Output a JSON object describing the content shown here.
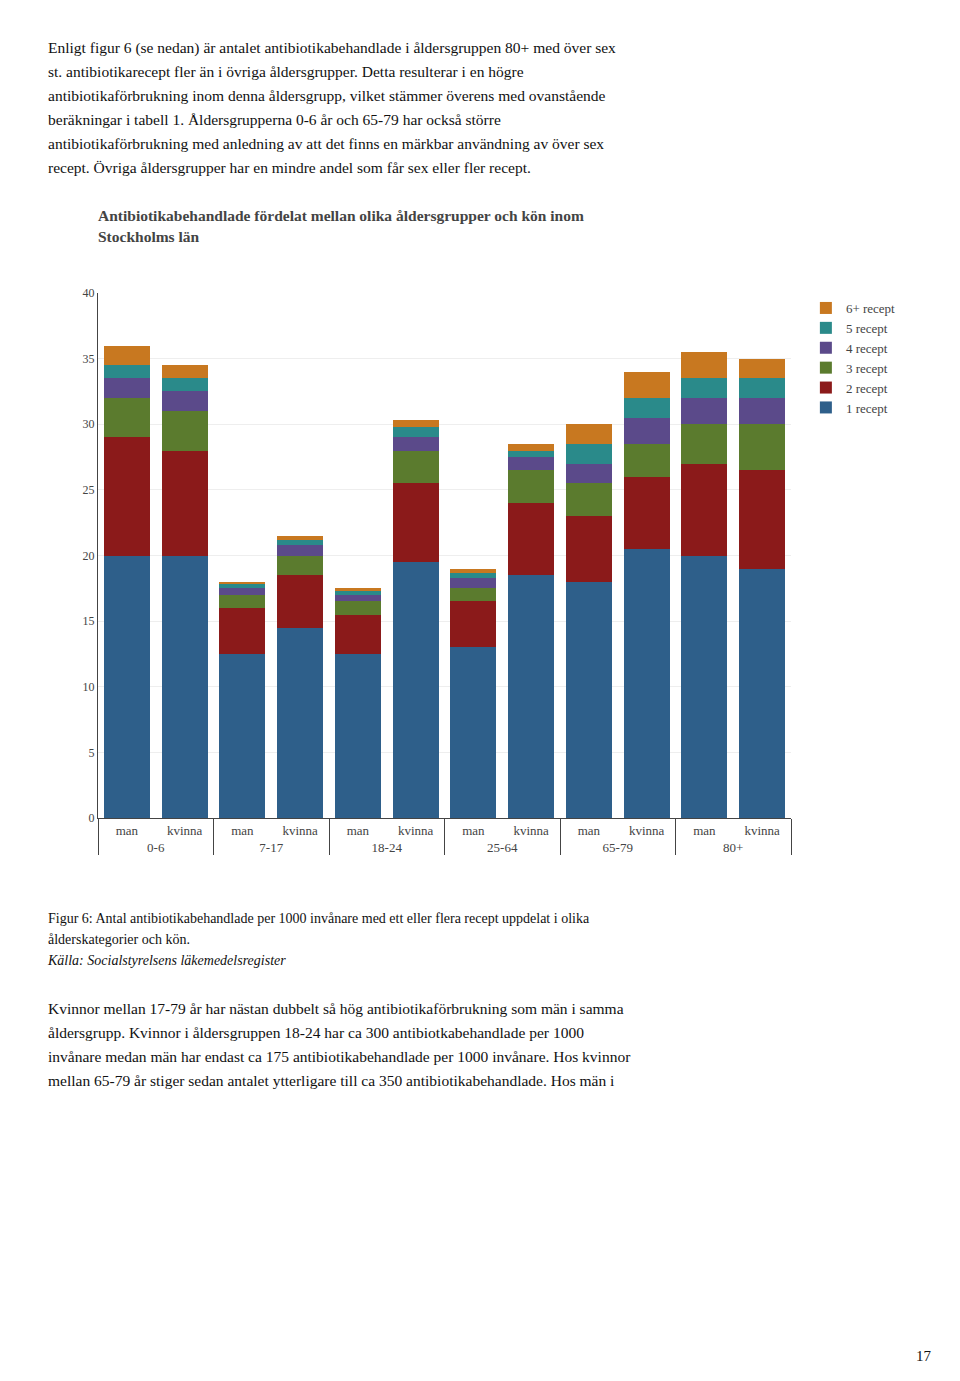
{
  "page_text": {
    "before": [
      "Enligt figur 6 (se nedan) är antalet antibiotikabehandlade i åldersgruppen 80+ med över sex",
      "st. antibiotikarecept fler än i övriga åldersgrupper. Detta resulterar i en högre",
      "antibiotikaförbrukning inom denna åldersgrupp, vilket stämmer överens med ovanstående",
      "beräkningar i tabell 1. Åldersgrupperna 0-6 år och 65-79  har också större",
      "antibiotikaförbrukning med anledning av att det finns en märkbar användning av över sex",
      "recept. Övriga åldersgrupper har en mindre andel som får sex eller fler recept."
    ],
    "caption": [
      "Figur 6: Antal antibiotikabehandlade per 1000 invånare med ett eller flera recept uppdelat i olika",
      "ålderskategorier och kön."
    ],
    "source": "Källa: Socialstyrelsens läkemedelsregister",
    "after": [
      "Kvinnor mellan 17-79 år har nästan dubbelt så hög antibiotikaförbrukning som män i samma",
      "åldersgrupp.  Kvinnor i åldersgruppen 18-24 har ca 300 antibiotkabehandlade per 1000",
      "invånare medan män har endast ca 175 antibiotikabehandlade per 1000 invånare. Hos kvinnor",
      "mellan 65-79 år stiger sedan antalet ytterligare till ca 350 antibiotikabehandlade. Hos män i"
    ],
    "page_number": "17"
  },
  "chart_data": {
    "type": "bar",
    "stacked": true,
    "title": "Antibiotikabehandlade fördelat mellan olika åldersgrupper och kön inom\nStockholms län",
    "categories": [
      [
        "0-6",
        "man"
      ],
      [
        "0-6",
        "kvinna"
      ],
      [
        "7-17",
        "man"
      ],
      [
        "7-17",
        "kvinna"
      ],
      [
        "18-24",
        "man"
      ],
      [
        "18-24",
        "kvinna"
      ],
      [
        "25-64",
        "man"
      ],
      [
        "25-64",
        "kvinna"
      ],
      [
        "65-79",
        "man"
      ],
      [
        "65-79",
        "kvinna"
      ],
      [
        "80+",
        "man"
      ],
      [
        "80+",
        "kvinna"
      ]
    ],
    "series": [
      {
        "name": "1 recept",
        "color": "#2E5F8A",
        "values": [
          20.0,
          20.0,
          12.5,
          14.5,
          12.5,
          19.5,
          13.0,
          18.5,
          18.0,
          20.5,
          20.0,
          19.0
        ]
      },
      {
        "name": "2 recept",
        "color": "#8B1A1A",
        "values": [
          9.0,
          8.0,
          3.5,
          4.0,
          3.0,
          6.0,
          3.5,
          5.5,
          5.0,
          5.5,
          7.0,
          7.5
        ]
      },
      {
        "name": "3 recept",
        "color": "#5B7B2E",
        "values": [
          3.0,
          3.0,
          1.0,
          1.5,
          1.0,
          2.5,
          1.0,
          2.5,
          2.5,
          2.5,
          3.0,
          3.5
        ]
      },
      {
        "name": "4 recept",
        "color": "#5B4A8A",
        "values": [
          1.5,
          1.5,
          0.5,
          0.8,
          0.5,
          1.0,
          0.8,
          1.0,
          1.5,
          2.0,
          2.0,
          2.0
        ]
      },
      {
        "name": "5 recept",
        "color": "#2A8A8A",
        "values": [
          1.0,
          1.0,
          0.3,
          0.4,
          0.3,
          0.8,
          0.4,
          0.5,
          1.5,
          1.5,
          1.5,
          1.5
        ]
      },
      {
        "name": "6+ recept",
        "color": "#C87820",
        "values": [
          1.5,
          1.0,
          0.2,
          0.3,
          0.2,
          0.5,
          0.3,
          0.5,
          1.5,
          2.0,
          2.0,
          1.5
        ]
      }
    ],
    "ylim": [
      0,
      40
    ],
    "yticks": [
      0,
      5,
      10,
      15,
      20,
      25,
      30,
      35,
      40
    ],
    "grid": true,
    "legend": "right"
  }
}
